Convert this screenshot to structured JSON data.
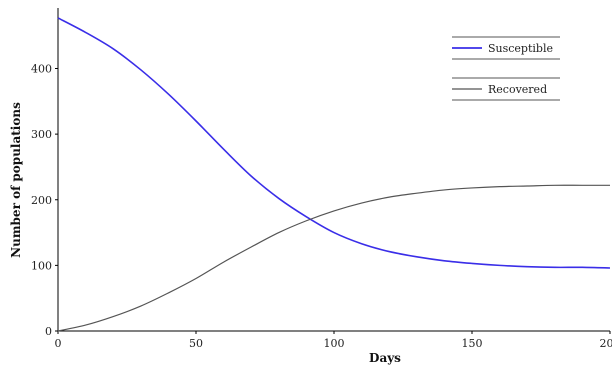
{
  "chart_data": {
    "type": "line",
    "title": "",
    "xlabel": "Days",
    "ylabel": "Number of populations",
    "xlim": [
      0,
      200
    ],
    "ylim": [
      0,
      480
    ],
    "xticks": [
      "0",
      "50",
      "100",
      "150",
      "200"
    ],
    "xtick_values": [
      0,
      50,
      100,
      150,
      200
    ],
    "yticks": [
      "0",
      "100",
      "200",
      "300",
      "400"
    ],
    "ytick_values": [
      0,
      100,
      200,
      300,
      400
    ],
    "grid": false,
    "legend_position": "top-right",
    "x": [
      0,
      10,
      20,
      30,
      40,
      50,
      60,
      70,
      80,
      90,
      100,
      110,
      120,
      130,
      140,
      150,
      160,
      170,
      180,
      190,
      200
    ],
    "series": [
      {
        "name": "Susceptible",
        "color": "#3a2ee8",
        "values": [
          477,
          455,
          430,
          398,
          361,
          320,
          277,
          236,
          202,
          174,
          150,
          133,
          121,
          113,
          107,
          103,
          100,
          98,
          97,
          97,
          96
        ]
      },
      {
        "name": "Recovered",
        "color": "#555555",
        "values": [
          0,
          9,
          22,
          38,
          58,
          80,
          105,
          128,
          150,
          168,
          183,
          195,
          204,
          210,
          215,
          218,
          220,
          221,
          222,
          222,
          222
        ]
      }
    ]
  }
}
